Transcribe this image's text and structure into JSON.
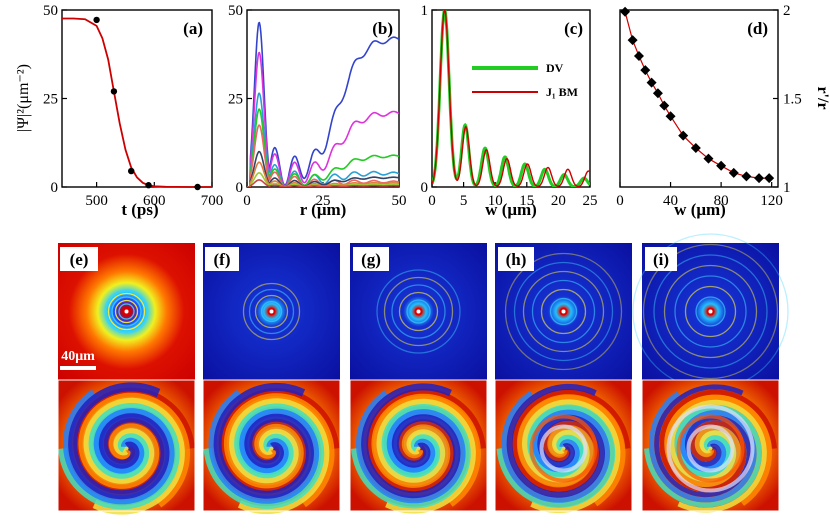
{
  "chart_data": [
    {
      "type": "line",
      "panel_label": "(a)",
      "xlabel": "t (ps)",
      "ylabel": "|Ψ|²(μm⁻²)",
      "xlim": [
        440,
        700
      ],
      "ylim": [
        0,
        50
      ],
      "xticks": [
        "500",
        "600",
        "700"
      ],
      "yticks": [
        "0",
        "25",
        "50"
      ],
      "series": [
        {
          "name": "fit",
          "color": "#cc0000",
          "style": "line",
          "x": [
            440,
            460,
            480,
            500,
            510,
            520,
            530,
            540,
            550,
            560,
            570,
            580,
            590,
            600,
            620,
            640,
            660,
            680,
            700
          ],
          "y": [
            47.6,
            47.6,
            47.4,
            45.5,
            42,
            36,
            27,
            18,
            10.5,
            5.5,
            2.7,
            1.2,
            0.5,
            0.2,
            0.05,
            0.02,
            0,
            0,
            0
          ]
        },
        {
          "name": "data",
          "color": "#000000",
          "style": "points",
          "x": [
            500,
            530,
            560,
            590,
            675
          ],
          "y": [
            47.2,
            27,
            4.5,
            0.5,
            0
          ]
        }
      ]
    },
    {
      "type": "line",
      "panel_label": "(b)",
      "xlabel": "r (μm)",
      "ylabel": "",
      "xlim": [
        0,
        50
      ],
      "ylim": [
        0,
        50
      ],
      "xticks": [
        "0",
        "25",
        "50"
      ],
      "yticks": [
        "0",
        "25",
        "50"
      ],
      "curves": [
        {
          "color": "#3344cc",
          "peak": 46.5,
          "trough": 13,
          "tail": 41.5
        },
        {
          "color": "#dd33dd",
          "peak": 38,
          "trough": 11,
          "tail": 20.5
        },
        {
          "color": "#2a9fd6",
          "peak": 26.5,
          "trough": 7.5,
          "tail": 3.5
        },
        {
          "color": "#22cc22",
          "peak": 22,
          "trough": 6,
          "tail": 8.5
        },
        {
          "color": "#ee6666",
          "peak": 17.5,
          "trough": 5,
          "tail": 1.2
        },
        {
          "color": "#334466",
          "peak": 10,
          "trough": 3,
          "tail": 2.5
        },
        {
          "color": "#e08040",
          "peak": 7,
          "trough": 2,
          "tail": 1
        },
        {
          "color": "#99cc33",
          "peak": 4,
          "trough": 1.2,
          "tail": 0.6
        },
        {
          "color": "#cc4444",
          "peak": 2,
          "trough": 0.6,
          "tail": 0.3
        }
      ]
    },
    {
      "type": "line",
      "panel_label": "(c)",
      "xlabel": "w (μm)",
      "ylabel": "",
      "xlim": [
        0,
        25
      ],
      "ylim": [
        0,
        1
      ],
      "xticks": [
        "0",
        "5",
        "10",
        "15",
        "20",
        "25"
      ],
      "yticks": [
        "0",
        "1"
      ],
      "legend": [
        {
          "label": "DV",
          "color": "#22cc22"
        },
        {
          "label": "J₁ BM",
          "color": "#cc0000"
        }
      ],
      "peaks_w": [
        2,
        5.3,
        8.5,
        11.7,
        14.9,
        18.1,
        21.2,
        24.4
      ],
      "peaks_dv": [
        1.0,
        0.35,
        0.22,
        0.17,
        0.13,
        0.1,
        0.07,
        0.05
      ],
      "peaks_bm": [
        1.0,
        0.34,
        0.21,
        0.16,
        0.13,
        0.11,
        0.1,
        0.09
      ]
    },
    {
      "type": "line",
      "panel_label": "(d)",
      "xlabel": "w (μm)",
      "ylabel": "r'/r",
      "xlim": [
        0,
        125
      ],
      "ylim": [
        1,
        2
      ],
      "xticks": [
        "0",
        "40",
        "80",
        "120"
      ],
      "yticks": [
        "1",
        "1.5",
        "2"
      ],
      "series": [
        {
          "name": "data",
          "color": "#000000",
          "style": "markers",
          "x": [
            4,
            10,
            15,
            20,
            25,
            30,
            35,
            40,
            50,
            60,
            70,
            80,
            90,
            100,
            110,
            118
          ],
          "y": [
            1.99,
            1.83,
            1.74,
            1.66,
            1.59,
            1.53,
            1.46,
            1.4,
            1.29,
            1.22,
            1.16,
            1.12,
            1.08,
            1.06,
            1.05,
            1.05
          ]
        }
      ]
    }
  ],
  "images": {
    "labels": [
      "(e)",
      "(f)",
      "(g)",
      "(h)",
      "(i)"
    ],
    "scale_bar": "40μm"
  }
}
